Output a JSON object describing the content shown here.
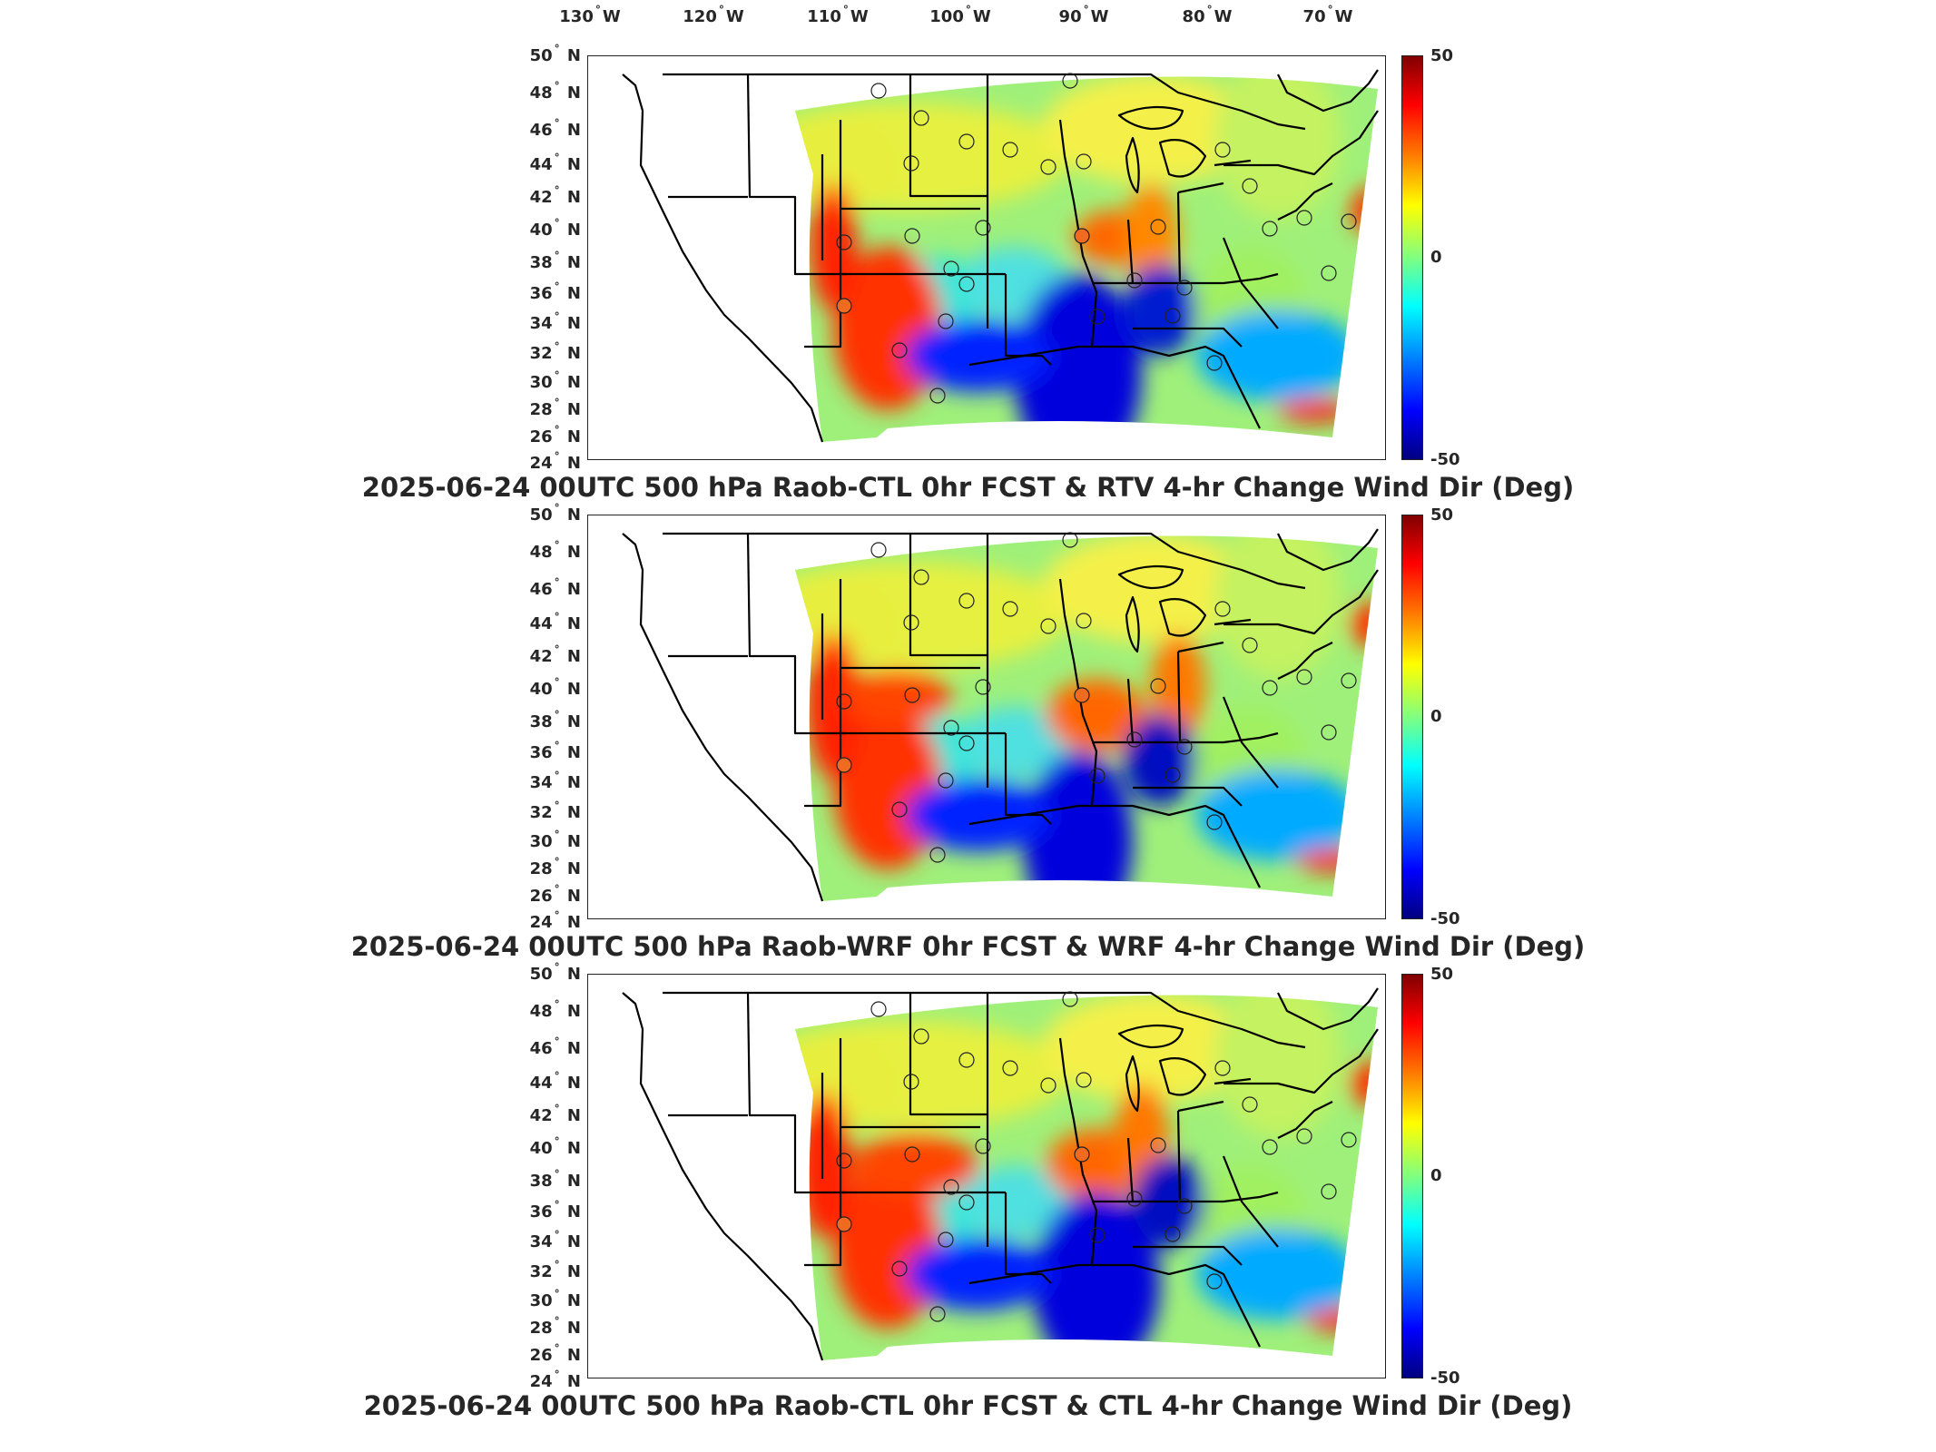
{
  "longitude_labels": [
    {
      "deg": "130",
      "dir": "W"
    },
    {
      "deg": "120",
      "dir": "W"
    },
    {
      "deg": "110",
      "dir": "W"
    },
    {
      "deg": "100",
      "dir": "W"
    },
    {
      "deg": "90",
      "dir": "W"
    },
    {
      "deg": "80",
      "dir": "W"
    },
    {
      "deg": "70",
      "dir": "W"
    }
  ],
  "latitude_labels": [
    {
      "deg": "50",
      "dir": "N"
    },
    {
      "deg": "48",
      "dir": "N"
    },
    {
      "deg": "46",
      "dir": "N"
    },
    {
      "deg": "44",
      "dir": "N"
    },
    {
      "deg": "42",
      "dir": "N"
    },
    {
      "deg": "40",
      "dir": "N"
    },
    {
      "deg": "38",
      "dir": "N"
    },
    {
      "deg": "36",
      "dir": "N"
    },
    {
      "deg": "34",
      "dir": "N"
    },
    {
      "deg": "32",
      "dir": "N"
    },
    {
      "deg": "30",
      "dir": "N"
    },
    {
      "deg": "28",
      "dir": "N"
    },
    {
      "deg": "26",
      "dir": "N"
    },
    {
      "deg": "24",
      "dir": "N"
    }
  ],
  "colorbar": {
    "max_label": "50",
    "mid_label": "0",
    "min_label": "-50",
    "colors": [
      "#800000",
      "#ff0000",
      "#ff8000",
      "#ffff00",
      "#80ff80",
      "#00ffff",
      "#0080ff",
      "#0000ff",
      "#000080"
    ]
  },
  "panels": [
    {
      "caption": "2025-06-24 00UTC 500 hPa Raob-CTL 0hr FCST & RTV 4-hr Change Wind Dir (Deg)"
    },
    {
      "caption": "2025-06-24 00UTC 500 hPa Raob-WRF 0hr FCST & WRF 4-hr Change Wind Dir (Deg)"
    },
    {
      "caption": "2025-06-24 00UTC 500 hPa Raob-CTL 0hr FCST & CTL 4-hr Change Wind Dir (Deg)"
    }
  ]
}
